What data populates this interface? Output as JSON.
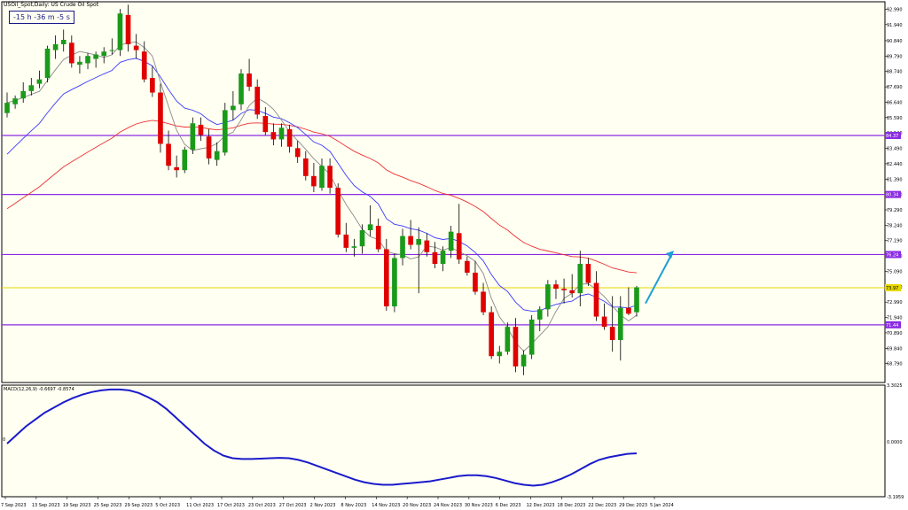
{
  "header": {
    "symbol": "USOil_Spot,Daily:",
    "description": "US Crude Oil Spot",
    "countdown": "-15 h -36 m -5 s"
  },
  "macd": {
    "label": "MACD(12,26,9) -0.6697 -0.8574",
    "zero_label": "0",
    "scale_labels": [
      "3.3025",
      "0.0000",
      "-3.1959"
    ]
  },
  "colors": {
    "background": "#fffff2",
    "bull": "#1a9a1a",
    "bear": "#e00000",
    "ma_fast": "#8a8a8a",
    "ma_mid": "#3a3aff",
    "ma_slow": "#ee3030",
    "levels": "#8a2be2",
    "current_price": "#e6d800",
    "macd_line": "#1a1acc",
    "arrow": "#1e9ed8"
  },
  "chart_data": {
    "type": "candlestick",
    "price_axis_labels": [
      "92.990",
      "91.940",
      "90.840",
      "89.790",
      "88.740",
      "87.690",
      "86.640",
      "85.590",
      "84.540",
      "83.490",
      "82.440",
      "81.390",
      "80.340",
      "79.290",
      "78.240",
      "77.190",
      "76.140",
      "75.090",
      "74.040",
      "72.990",
      "71.940",
      "70.890",
      "69.840",
      "68.790"
    ],
    "level_labels": [
      "84.37",
      "80.34",
      "76.24",
      "73.97",
      "71.44"
    ],
    "date_labels": [
      "7 Sep 2023",
      "13 Sep 2023",
      "19 Sep 2023",
      "25 Sep 2023",
      "29 Sep 2023",
      "5 Oct 2023",
      "11 Oct 2023",
      "17 Oct 2023",
      "23 Oct 2023",
      "27 Oct 2023",
      "2 Nov 2023",
      "8 Nov 2023",
      "14 Nov 2023",
      "20 Nov 2023",
      "24 Nov 2023",
      "30 Nov 2023",
      "6 Dec 2023",
      "12 Dec 2023",
      "18 Dec 2023",
      "22 Dec 2023",
      "29 Dec 2023",
      "5 Jan 2024"
    ],
    "horizontal_levels": [
      84.37,
      80.34,
      76.24,
      71.44
    ],
    "current_price": 73.97,
    "macd_values": [
      -0.1,
      0.4,
      0.9,
      1.3,
      1.7,
      2.0,
      2.3,
      2.55,
      2.75,
      2.9,
      3.0,
      3.05,
      3.05,
      3.0,
      2.85,
      2.6,
      2.3,
      1.9,
      1.4,
      0.9,
      0.4,
      -0.1,
      -0.5,
      -0.8,
      -0.95,
      -1.0,
      -1.0,
      -0.98,
      -0.95,
      -0.93,
      -0.95,
      -1.05,
      -1.2,
      -1.4,
      -1.6,
      -1.8,
      -2.0,
      -2.2,
      -2.35,
      -2.45,
      -2.5,
      -2.5,
      -2.45,
      -2.4,
      -2.35,
      -2.3,
      -2.2,
      -2.1,
      -2.0,
      -1.95,
      -1.95,
      -2.0,
      -2.1,
      -2.25,
      -2.4,
      -2.5,
      -2.55,
      -2.5,
      -2.35,
      -2.15,
      -1.9,
      -1.6,
      -1.3,
      -1.05,
      -0.9,
      -0.8,
      -0.7,
      -0.67
    ],
    "candles": [
      [
        85.9,
        87.3,
        85.6,
        86.6
      ],
      [
        86.5,
        87.1,
        86.2,
        86.9
      ],
      [
        86.9,
        88.0,
        86.6,
        87.4
      ],
      [
        87.4,
        88.3,
        87.1,
        87.8
      ],
      [
        87.9,
        88.8,
        87.6,
        88.2
      ],
      [
        88.3,
        90.5,
        88.0,
        90.3
      ],
      [
        90.2,
        91.2,
        89.6,
        90.6
      ],
      [
        90.6,
        91.6,
        90.1,
        90.9
      ],
      [
        90.7,
        91.2,
        89.0,
        89.3
      ],
      [
        89.2,
        89.8,
        88.6,
        89.4
      ],
      [
        89.3,
        90.0,
        88.9,
        89.8
      ],
      [
        89.6,
        90.1,
        89.0,
        89.9
      ],
      [
        89.8,
        90.4,
        89.3,
        90.1
      ],
      [
        90.2,
        91.0,
        89.9,
        90.2
      ],
      [
        90.2,
        93.0,
        89.8,
        92.7
      ],
      [
        92.6,
        93.3,
        90.1,
        90.6
      ],
      [
        90.5,
        91.3,
        89.6,
        90.2
      ],
      [
        90.1,
        90.8,
        88.0,
        88.2
      ],
      [
        88.3,
        89.1,
        87.0,
        87.3
      ],
      [
        87.3,
        87.9,
        83.2,
        83.8
      ],
      [
        83.8,
        84.7,
        82.0,
        82.3
      ],
      [
        82.2,
        83.0,
        81.5,
        82.0
      ],
      [
        82.0,
        83.6,
        81.8,
        83.4
      ],
      [
        83.4,
        85.6,
        83.1,
        85.2
      ],
      [
        85.1,
        85.6,
        84.0,
        84.4
      ],
      [
        84.3,
        84.8,
        82.4,
        82.8
      ],
      [
        82.7,
        83.9,
        82.3,
        83.3
      ],
      [
        83.2,
        86.6,
        83.0,
        86.1
      ],
      [
        86.1,
        87.4,
        85.4,
        86.4
      ],
      [
        86.5,
        88.9,
        86.1,
        88.6
      ],
      [
        88.6,
        89.6,
        87.4,
        87.7
      ],
      [
        87.7,
        88.2,
        85.5,
        85.8
      ],
      [
        85.7,
        86.3,
        84.4,
        84.6
      ],
      [
        84.6,
        85.2,
        83.7,
        84.1
      ],
      [
        84.1,
        85.2,
        83.6,
        84.9
      ],
      [
        84.8,
        85.1,
        83.2,
        83.6
      ],
      [
        83.5,
        84.0,
        82.5,
        82.9
      ],
      [
        82.8,
        83.3,
        81.3,
        81.6
      ],
      [
        81.6,
        82.5,
        80.5,
        80.9
      ],
      [
        80.8,
        82.8,
        80.6,
        82.3
      ],
      [
        82.3,
        82.8,
        80.4,
        80.8
      ],
      [
        80.8,
        81.1,
        77.4,
        77.6
      ],
      [
        77.6,
        78.4,
        76.4,
        76.7
      ],
      [
        76.7,
        77.3,
        76.1,
        76.8
      ],
      [
        76.8,
        78.3,
        76.3,
        77.9
      ],
      [
        77.9,
        79.6,
        77.5,
        78.3
      ],
      [
        78.2,
        78.7,
        76.4,
        76.6
      ],
      [
        76.6,
        77.3,
        72.4,
        72.7
      ],
      [
        72.7,
        76.3,
        72.3,
        76.0
      ],
      [
        76.0,
        78.0,
        75.5,
        77.5
      ],
      [
        77.5,
        78.6,
        76.6,
        76.9
      ],
      [
        76.9,
        78.1,
        73.6,
        77.3
      ],
      [
        77.2,
        77.7,
        76.1,
        76.4
      ],
      [
        76.4,
        77.1,
        75.3,
        75.6
      ],
      [
        75.6,
        76.8,
        75.1,
        76.5
      ],
      [
        76.5,
        78.2,
        76.0,
        77.8
      ],
      [
        77.7,
        79.7,
        75.6,
        75.9
      ],
      [
        75.8,
        76.1,
        74.8,
        75.0
      ],
      [
        75.0,
        75.8,
        73.5,
        73.7
      ],
      [
        73.7,
        74.3,
        72.1,
        72.3
      ],
      [
        72.3,
        72.7,
        69.1,
        69.3
      ],
      [
        69.3,
        70.0,
        68.8,
        69.6
      ],
      [
        69.6,
        71.6,
        69.4,
        71.3
      ],
      [
        71.3,
        71.9,
        68.2,
        68.6
      ],
      [
        68.6,
        69.7,
        68.0,
        69.4
      ],
      [
        69.4,
        72.1,
        69.1,
        71.8
      ],
      [
        71.8,
        72.7,
        71.0,
        72.5
      ],
      [
        72.5,
        74.5,
        72.0,
        74.2
      ],
      [
        74.2,
        74.5,
        73.2,
        73.9
      ],
      [
        73.9,
        74.6,
        72.9,
        73.8
      ],
      [
        73.8,
        74.9,
        73.3,
        73.6
      ],
      [
        73.6,
        76.5,
        72.7,
        75.6
      ],
      [
        75.6,
        76.0,
        74.1,
        74.3
      ],
      [
        74.3,
        75.1,
        71.7,
        72.0
      ],
      [
        72.0,
        72.9,
        71.1,
        71.3
      ],
      [
        71.3,
        73.4,
        69.6,
        70.4
      ],
      [
        70.4,
        73.4,
        69.0,
        72.6
      ],
      [
        72.6,
        74.0,
        72.1,
        72.2
      ],
      [
        72.3,
        74.1,
        72.0,
        74.0
      ]
    ]
  }
}
